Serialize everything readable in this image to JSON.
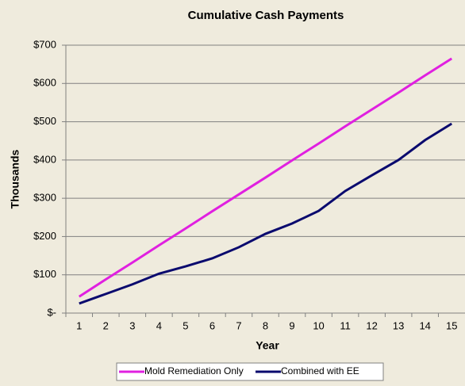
{
  "chart_data": {
    "type": "line",
    "title": "Cumulative Cash Payments",
    "x_label": "Year",
    "y_label": "Thousands",
    "categories": [
      "1",
      "2",
      "3",
      "4",
      "5",
      "6",
      "7",
      "8",
      "9",
      "10",
      "11",
      "12",
      "13",
      "14",
      "15"
    ],
    "series": [
      {
        "name": "Mold Remediation Only",
        "color": "#e020e0",
        "values": [
          43,
          88,
          132,
          177,
          221,
          266,
          310,
          354,
          399,
          443,
          488,
          532,
          576,
          621,
          665
        ]
      },
      {
        "name": "Combined with EE",
        "color": "#0a0a6e",
        "values": [
          25,
          50,
          75,
          103,
          122,
          143,
          172,
          207,
          234,
          267,
          319,
          360,
          400,
          452,
          495
        ]
      }
    ],
    "ylim": [
      0,
      700
    ],
    "yticks": [
      {
        "value": 0,
        "label": "$-"
      },
      {
        "value": 100,
        "label": "$100"
      },
      {
        "value": 200,
        "label": "$200"
      },
      {
        "value": 300,
        "label": "$300"
      },
      {
        "value": 400,
        "label": "$400"
      },
      {
        "value": 500,
        "label": "$500"
      },
      {
        "value": 600,
        "label": "$600"
      },
      {
        "value": 700,
        "label": "$700"
      }
    ],
    "grid": true,
    "legend": "bottom"
  }
}
